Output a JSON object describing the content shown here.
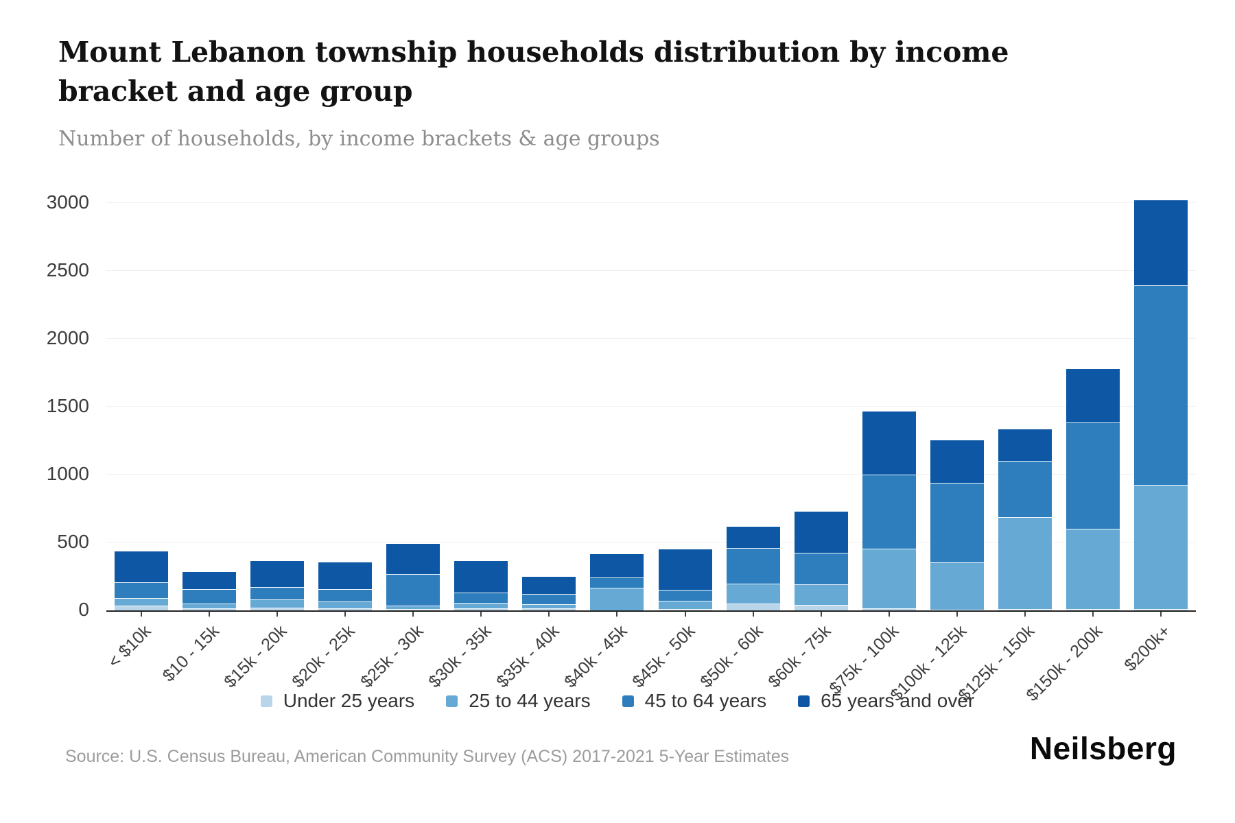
{
  "header": {
    "title": "Mount Lebanon township households distribution by income bracket and age group",
    "subtitle": "Number of households, by income brackets & age groups"
  },
  "chart_data": {
    "type": "bar",
    "stacked": true,
    "title": "Mount Lebanon township households distribution by income bracket and age group",
    "xlabel": "",
    "ylabel": "Number of households",
    "ylim": [
      0,
      3000
    ],
    "yticks": [
      0,
      500,
      1000,
      1500,
      2000,
      2500,
      3000
    ],
    "grid": true,
    "legend_position": "bottom",
    "categories": [
      "< $10k",
      "$10 - 15k",
      "$15k - 20k",
      "$20k - 25k",
      "$25k - 30k",
      "$30k - 35k",
      "$35k - 40k",
      "$40k - 45k",
      "$45k - 50k",
      "$50k - 60k",
      "$60k - 75k",
      "$75k - 100k",
      "$100k - 125k",
      "$125k - 150k",
      "$150k - 200k",
      "$200k+"
    ],
    "series": [
      {
        "name": "Under 25 years",
        "color": "#b9d5e9",
        "values": [
          35,
          15,
          20,
          15,
          10,
          15,
          15,
          0,
          10,
          50,
          40,
          15,
          5,
          10,
          10,
          10
        ]
      },
      {
        "name": "25 to 44 years",
        "color": "#66a9d4",
        "values": [
          55,
          35,
          60,
          50,
          25,
          40,
          30,
          170,
          60,
          150,
          155,
          440,
          350,
          680,
          590,
          920
        ]
      },
      {
        "name": "45 to 64 years",
        "color": "#2e7ebd",
        "values": [
          120,
          105,
          95,
          95,
          235,
          75,
          75,
          75,
          80,
          260,
          230,
          545,
          585,
          410,
          785,
          1470
        ]
      },
      {
        "name": "65 years and over",
        "color": "#0d57a4",
        "values": [
          225,
          130,
          190,
          195,
          220,
          235,
          130,
          170,
          300,
          155,
          305,
          465,
          315,
          235,
          395,
          630
        ]
      }
    ],
    "totals": [
      435,
      285,
      365,
      355,
      490,
      365,
      250,
      415,
      450,
      615,
      730,
      1465,
      1255,
      1335,
      1780,
      3030
    ]
  },
  "footer": {
    "source": "Source: U.S. Census Bureau, American Community Survey (ACS) 2017-2021 5-Year Estimates",
    "logo": "Neilsberg"
  }
}
